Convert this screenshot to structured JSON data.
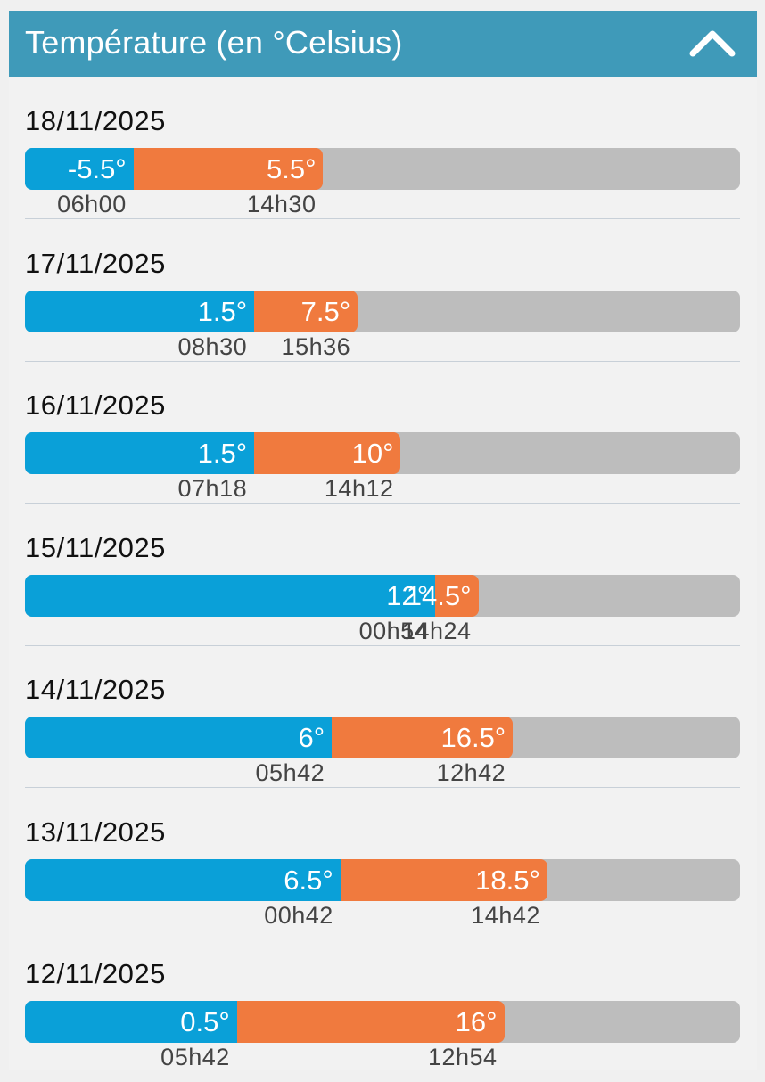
{
  "header": {
    "title": "Température (en °Celsius)",
    "collapse_icon": "chevron-up-icon"
  },
  "colors": {
    "header_bg": "#3f9ab9",
    "min_bar": "#0aa0d8",
    "max_bar": "#f07a3e",
    "track": "#bdbdbd"
  },
  "days": [
    {
      "date": "18/11/2025",
      "min": -5.5,
      "min_label": "-5.5°",
      "min_time": "06h00",
      "max": 5.5,
      "max_label": "5.5°",
      "max_time": "14h30"
    },
    {
      "date": "17/11/2025",
      "min": 1.5,
      "min_label": "1.5°",
      "min_time": "08h30",
      "max": 7.5,
      "max_label": "7.5°",
      "max_time": "15h36"
    },
    {
      "date": "16/11/2025",
      "min": 1.5,
      "min_label": "1.5°",
      "min_time": "07h18",
      "max": 10,
      "max_label": "10°",
      "max_time": "14h12"
    },
    {
      "date": "15/11/2025",
      "min": 12,
      "min_label": "12°",
      "min_time": "00h54",
      "max": 14.5,
      "max_label": "14.5°",
      "max_time": "14h24"
    },
    {
      "date": "14/11/2025",
      "min": 6,
      "min_label": "6°",
      "min_time": "05h42",
      "max": 16.5,
      "max_label": "16.5°",
      "max_time": "12h42"
    },
    {
      "date": "13/11/2025",
      "min": 6.5,
      "min_label": "6.5°",
      "min_time": "00h42",
      "max": 18.5,
      "max_label": "18.5°",
      "max_time": "14h42"
    },
    {
      "date": "12/11/2025",
      "min": 0.5,
      "min_label": "0.5°",
      "min_time": "05h42",
      "max": 16,
      "max_label": "16°",
      "max_time": "12h54"
    }
  ]
}
